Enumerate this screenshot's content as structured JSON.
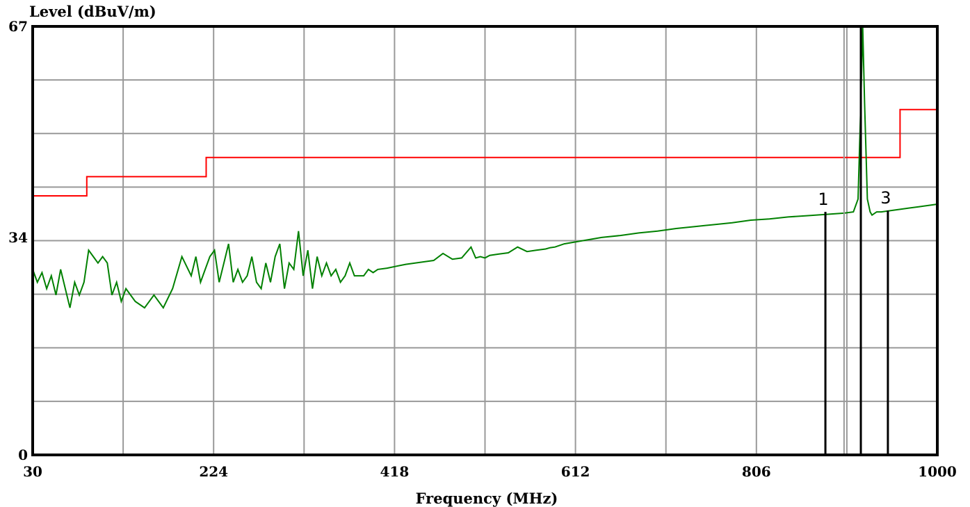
{
  "chart_data": {
    "type": "line",
    "ylabel": "Level (dBuV/m)",
    "xlabel": "Frequency (MHz)",
    "xlim": [
      30,
      1000
    ],
    "ylim": [
      0,
      67
    ],
    "x_ticks": [
      "30",
      "224",
      "418",
      "612",
      "806",
      "1000"
    ],
    "y_ticks": [
      "67",
      "34",
      "0"
    ],
    "grid": true,
    "colors": {
      "limit": "#ff0000",
      "trace": "#008000",
      "markers": "#000000",
      "grid": "#999999"
    },
    "series": [
      {
        "role": "limit",
        "x": [
          30,
          88,
          88,
          216,
          216,
          960,
          960,
          1000
        ],
        "y": [
          40.5,
          40.5,
          43.5,
          43.5,
          46.5,
          46.5,
          54,
          54
        ]
      },
      {
        "role": "measurement",
        "x": [
          30,
          35,
          40,
          45,
          50,
          55,
          60,
          65,
          70,
          75,
          80,
          85,
          90,
          95,
          100,
          105,
          110,
          115,
          120,
          125,
          130,
          140,
          150,
          160,
          170,
          180,
          190,
          200,
          205,
          210,
          215,
          220,
          225,
          230,
          235,
          240,
          245,
          250,
          255,
          260,
          265,
          270,
          275,
          280,
          285,
          290,
          295,
          300,
          305,
          310,
          315,
          320,
          325,
          330,
          335,
          340,
          345,
          350,
          355,
          360,
          365,
          370,
          375,
          380,
          385,
          390,
          395,
          400,
          410,
          420,
          430,
          440,
          450,
          460,
          470,
          480,
          490,
          500,
          505,
          510,
          515,
          520,
          530,
          540,
          550,
          560,
          570,
          580,
          585,
          590,
          600,
          620,
          640,
          660,
          680,
          700,
          720,
          740,
          760,
          780,
          800,
          820,
          840,
          860,
          880,
          900,
          910,
          915,
          918,
          920,
          922,
          925,
          928,
          930,
          935,
          940,
          950,
          960,
          970,
          980,
          990,
          1000
        ],
        "y": [
          29,
          27,
          28.5,
          26,
          28,
          25,
          29,
          26,
          23,
          27,
          25,
          27,
          32,
          31,
          30,
          31,
          30,
          25,
          27,
          24,
          26,
          24,
          23,
          25,
          23,
          26,
          31,
          28,
          31,
          27,
          29,
          31,
          32,
          27,
          30,
          33,
          27,
          29,
          27,
          28,
          31,
          27,
          26,
          30,
          27,
          31,
          33,
          26,
          30,
          29,
          35,
          28,
          32,
          26,
          31,
          28,
          30,
          28,
          29,
          27,
          28,
          30,
          28,
          28,
          28,
          29,
          28.5,
          29,
          29.2,
          29.5,
          29.8,
          30,
          30.2,
          30.4,
          31.5,
          30.6,
          30.8,
          32.5,
          30.8,
          31,
          30.8,
          31.2,
          31.4,
          31.6,
          32.5,
          31.8,
          32,
          32.2,
          32.4,
          32.5,
          33,
          33.5,
          34,
          34.3,
          34.7,
          35,
          35.4,
          35.7,
          36,
          36.3,
          36.7,
          36.9,
          37.2,
          37.4,
          37.6,
          37.8,
          38,
          40,
          55,
          67,
          55,
          40,
          38,
          37.5,
          38,
          38,
          38.2,
          38.4,
          38.6,
          38.8,
          39,
          39.2
        ]
      }
    ],
    "markers": [
      {
        "label": "1",
        "x": 880,
        "y": 38.0
      },
      {
        "label": "",
        "x": 918,
        "y": 67
      },
      {
        "label": "3",
        "x": 947,
        "y": 38.2
      }
    ],
    "unlabeled_vlines": [
      {
        "x": 900
      }
    ]
  }
}
